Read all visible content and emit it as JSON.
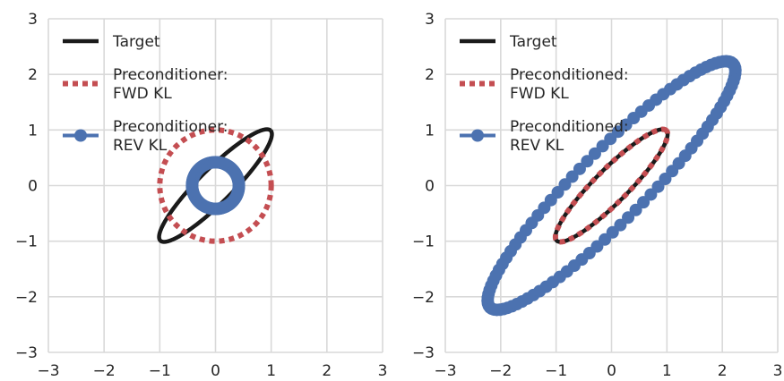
{
  "colors": {
    "background": "#ffffff",
    "grid": "#d9d9d9",
    "target": "#1a1a1a",
    "fwd": "#c44e52",
    "rev": "#4c72b0"
  },
  "chart_data": [
    {
      "type": "line",
      "title": "",
      "xlabel": "",
      "ylabel": "",
      "xlim": [
        -3,
        3
      ],
      "ylim": [
        -3,
        3
      ],
      "grid": true,
      "legend_position": "top-left",
      "xticks": [
        "−3",
        "−2",
        "−1",
        "0",
        "1",
        "2",
        "3"
      ],
      "yticks": [
        "3",
        "2",
        "1",
        "0",
        "−1",
        "−2",
        "−3"
      ],
      "series": [
        {
          "name": "Target",
          "style": "solid",
          "color": "#1a1a1a",
          "ellipse": {
            "cx": 0,
            "cy": 0,
            "angle_deg": 45,
            "semi_major": 1.4,
            "semi_minor": 0.3
          }
        },
        {
          "name": "Preconditioner:\nFWD KL",
          "style": "dotted",
          "color": "#c44e52",
          "ellipse": {
            "cx": 0,
            "cy": 0,
            "angle_deg": 0,
            "semi_major": 1.0,
            "semi_minor": 1.0
          }
        },
        {
          "name": "Preconditioner:\nREV KL",
          "style": "markers",
          "color": "#4c72b0",
          "ellipse": {
            "cx": 0,
            "cy": 0,
            "angle_deg": 0,
            "semi_major": 0.42,
            "semi_minor": 0.42
          }
        }
      ]
    },
    {
      "type": "line",
      "title": "",
      "xlabel": "",
      "ylabel": "",
      "xlim": [
        -3,
        3
      ],
      "ylim": [
        -3,
        3
      ],
      "grid": true,
      "legend_position": "top-left",
      "xticks": [
        "−3",
        "−2",
        "−1",
        "0",
        "1",
        "2",
        "3"
      ],
      "yticks": [
        "3",
        "2",
        "1",
        "0",
        "−1",
        "−2",
        "−3"
      ],
      "series": [
        {
          "name": "Target",
          "style": "solid",
          "color": "#1a1a1a",
          "ellipse": {
            "cx": 0,
            "cy": 0,
            "angle_deg": 45,
            "semi_major": 1.4,
            "semi_minor": 0.3
          }
        },
        {
          "name": "Preconditioned:\nFWD KL",
          "style": "dotted",
          "color": "#c44e52",
          "ellipse": {
            "cx": 0,
            "cy": 0,
            "angle_deg": 45,
            "semi_major": 1.4,
            "semi_minor": 0.3
          }
        },
        {
          "name": "Preconditioned:\nREV KL",
          "style": "markers",
          "color": "#4c72b0",
          "ellipse": {
            "cx": 0,
            "cy": 0,
            "angle_deg": 45,
            "semi_major": 3.1,
            "semi_minor": 0.62
          }
        }
      ]
    }
  ]
}
